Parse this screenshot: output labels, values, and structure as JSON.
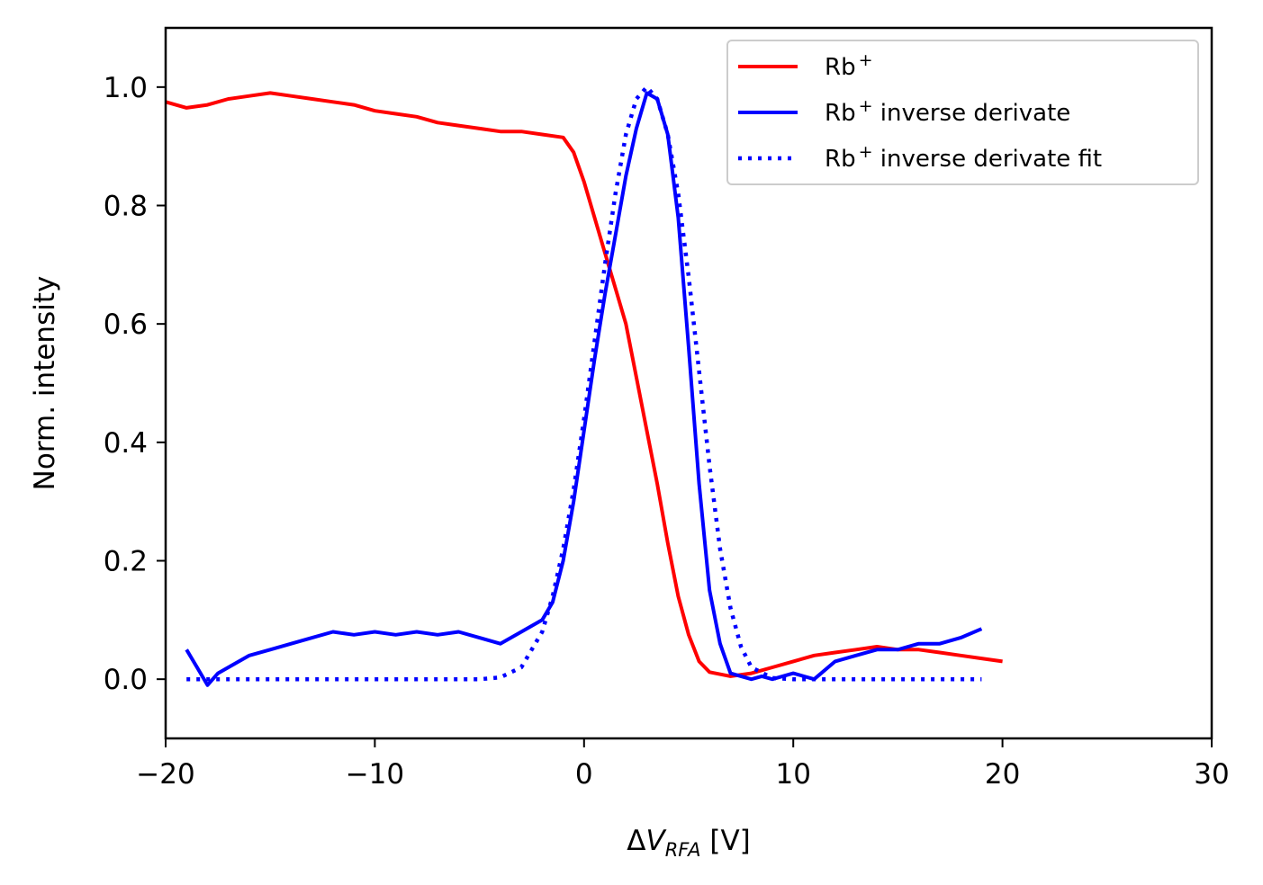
{
  "chart_data": {
    "type": "line",
    "title": "",
    "xlabel": "ΔV_RFA [V]",
    "xlabel_parts": {
      "delta": "Δ",
      "var": "V",
      "sub": "RFA",
      "unit": " [V]"
    },
    "ylabel": "Norm. intensity",
    "xlim": [
      -20,
      30
    ],
    "ylim": [
      -0.1,
      1.1
    ],
    "xticks": [
      -20,
      -10,
      0,
      10,
      20,
      30
    ],
    "xtick_labels": [
      "−20",
      "−10",
      "0",
      "10",
      "20",
      "30"
    ],
    "yticks": [
      0.0,
      0.2,
      0.4,
      0.6,
      0.8,
      1.0
    ],
    "ytick_labels": [
      "0.0",
      "0.2",
      "0.4",
      "0.6",
      "0.8",
      "1.0"
    ],
    "grid": false,
    "legend_position": "top-right",
    "series": [
      {
        "name": "Rb+",
        "legend_base": "Rb",
        "legend_sup": "+",
        "legend_rest": "",
        "color": "#ff0000",
        "style": "solid",
        "x": [
          -20,
          -19,
          -18,
          -17,
          -16,
          -15,
          -14,
          -13,
          -12,
          -11,
          -10,
          -9,
          -8,
          -7,
          -6,
          -5,
          -4,
          -3,
          -2,
          -1,
          -0.5,
          0,
          0.5,
          1,
          1.5,
          2,
          2.5,
          3,
          3.5,
          4,
          4.5,
          5,
          5.5,
          6,
          7,
          8,
          9,
          10,
          11,
          12,
          13,
          14,
          15,
          16,
          17,
          18,
          19,
          20
        ],
        "y": [
          0.975,
          0.965,
          0.97,
          0.98,
          0.985,
          0.99,
          0.985,
          0.98,
          0.975,
          0.97,
          0.96,
          0.955,
          0.95,
          0.94,
          0.935,
          0.93,
          0.925,
          0.925,
          0.92,
          0.915,
          0.89,
          0.84,
          0.78,
          0.72,
          0.66,
          0.6,
          0.51,
          0.42,
          0.33,
          0.23,
          0.14,
          0.075,
          0.03,
          0.012,
          0.005,
          0.01,
          0.02,
          0.03,
          0.04,
          0.045,
          0.05,
          0.055,
          0.05,
          0.05,
          0.045,
          0.04,
          0.035,
          0.03
        ]
      },
      {
        "name": "Rb+ inverse derivate",
        "legend_base": "Rb",
        "legend_sup": "+",
        "legend_rest": " inverse derivate",
        "color": "#0000ff",
        "style": "solid",
        "x": [
          -19,
          -18.5,
          -18,
          -17.5,
          -17,
          -16,
          -15,
          -14,
          -13,
          -12,
          -11,
          -10,
          -9,
          -8,
          -7,
          -6,
          -5,
          -4,
          -3,
          -2,
          -1.5,
          -1,
          -0.5,
          0,
          0.5,
          1,
          1.5,
          2,
          2.5,
          3,
          3.5,
          4,
          4.5,
          5,
          5.5,
          6,
          6.5,
          7,
          7.5,
          8,
          8.5,
          9,
          10,
          11,
          12,
          13,
          14,
          15,
          16,
          17,
          18,
          19
        ],
        "y": [
          0.05,
          0.02,
          -0.01,
          0.01,
          0.02,
          0.04,
          0.05,
          0.06,
          0.07,
          0.08,
          0.075,
          0.08,
          0.075,
          0.08,
          0.075,
          0.08,
          0.07,
          0.06,
          0.08,
          0.1,
          0.13,
          0.2,
          0.3,
          0.42,
          0.54,
          0.65,
          0.75,
          0.85,
          0.93,
          0.99,
          0.98,
          0.92,
          0.78,
          0.56,
          0.33,
          0.15,
          0.06,
          0.01,
          0.005,
          0.0,
          0.005,
          0.0,
          0.01,
          0.0,
          0.03,
          0.04,
          0.05,
          0.05,
          0.06,
          0.06,
          0.07,
          0.085
        ]
      },
      {
        "name": "Rb+ inverse derivate fit",
        "legend_base": "Rb",
        "legend_sup": "+",
        "legend_rest": " inverse derivate fit",
        "color": "#0000ff",
        "style": "dotted",
        "x": [
          -19,
          -10,
          -5,
          -4,
          -3,
          -2,
          -1.5,
          -1,
          -0.5,
          0,
          0.5,
          1,
          1.5,
          2,
          2.5,
          3,
          3.5,
          4,
          4.5,
          5,
          5.5,
          6,
          6.5,
          7,
          7.5,
          8,
          9,
          10,
          15,
          19
        ],
        "y": [
          0.0,
          0.0,
          0.0,
          0.003,
          0.02,
          0.08,
          0.14,
          0.22,
          0.32,
          0.44,
          0.57,
          0.7,
          0.82,
          0.92,
          0.98,
          1.0,
          0.98,
          0.92,
          0.82,
          0.68,
          0.52,
          0.36,
          0.22,
          0.12,
          0.055,
          0.02,
          0.002,
          0.0,
          0.0,
          0.0
        ]
      }
    ]
  }
}
